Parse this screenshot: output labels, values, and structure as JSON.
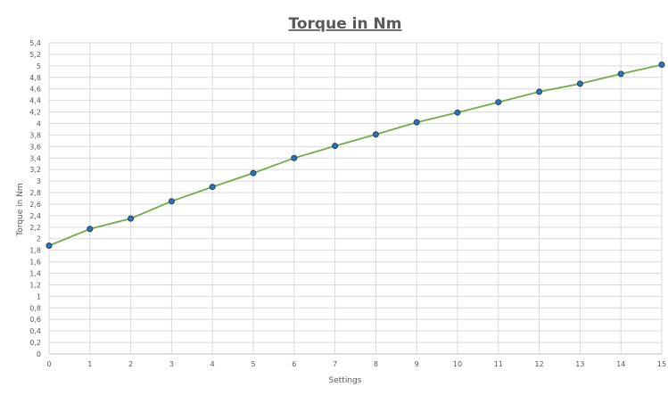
{
  "chart_data": {
    "type": "line",
    "title": "Torque in Nm",
    "xlabel": "Settings",
    "ylabel": "Torque in Nm",
    "x": [
      0,
      1,
      2,
      3,
      4,
      5,
      6,
      7,
      8,
      9,
      10,
      11,
      12,
      13,
      14,
      15
    ],
    "series": [
      {
        "values": [
          1.88,
          2.17,
          2.35,
          2.65,
          2.9,
          3.14,
          3.4,
          3.61,
          3.81,
          4.02,
          4.19,
          4.37,
          4.55,
          4.69,
          4.86,
          5.02
        ],
        "color": "#70ad47",
        "marker_color": "#2e75b6",
        "marker_edge": "#1f3f66"
      }
    ],
    "xlim": [
      0,
      15
    ],
    "ylim": [
      0,
      5.4
    ],
    "x_ticks": [
      "0",
      "1",
      "2",
      "3",
      "4",
      "5",
      "6",
      "7",
      "8",
      "9",
      "10",
      "11",
      "12",
      "13",
      "14",
      "15"
    ],
    "y_ticks": [
      "0",
      "0,2",
      "0,4",
      "0,6",
      "0,8",
      "1",
      "1,2",
      "1,4",
      "1,6",
      "1,8",
      "2",
      "2,2",
      "2,4",
      "2,6",
      "2,8",
      "3",
      "3,2",
      "3,4",
      "3,6",
      "3,8",
      "4",
      "4,2",
      "4,4",
      "4,6",
      "4,8",
      "5",
      "5,2",
      "5,4"
    ],
    "grid": true,
    "legend": "none"
  }
}
